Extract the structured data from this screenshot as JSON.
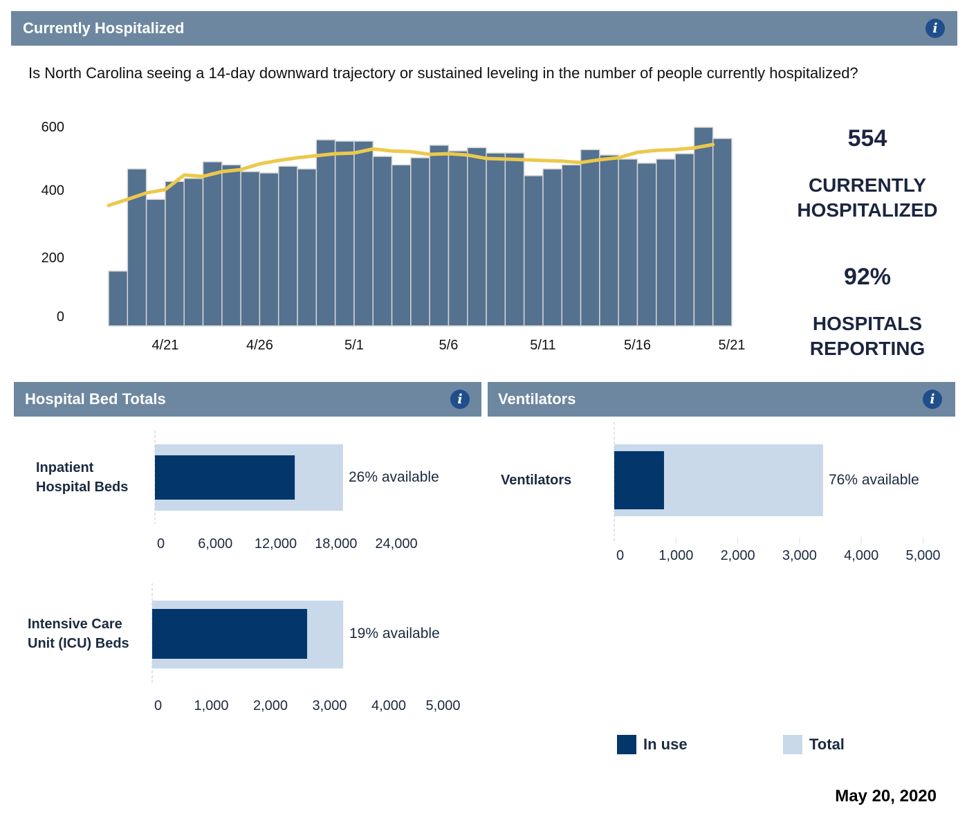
{
  "header": {
    "title": "Currently Hospitalized",
    "info_icon": "info-icon",
    "info_glyph": "i"
  },
  "question": "Is North Carolina seeing a 14-day downward trajectory or sustained leveling in the number of people currently hospitalized?",
  "kpis": {
    "hospitalized_value": "554",
    "hospitalized_label_1": "CURRENTLY",
    "hospitalized_label_2": "HOSPITALIZED",
    "reporting_value": "92%",
    "reporting_label_1": "HOSPITALS",
    "reporting_label_2": "REPORTING"
  },
  "beds_panel": {
    "title": "Hospital Bed Totals",
    "info_icon": "info-icon",
    "info_glyph": "i"
  },
  "vent_panel": {
    "title": "Ventilators",
    "info_icon": "info-icon",
    "info_glyph": "i"
  },
  "legend": {
    "in_use": "In use",
    "total": "Total"
  },
  "date": "May 20, 2020",
  "colors": {
    "header_bg": "#6d87a0",
    "info_icon": "#1f4e8b",
    "bar_fill": "#54718f",
    "bar_stroke": "#d5d5d5",
    "trend_line": "#ecc94b",
    "in_use": "#03366b",
    "total": "#c9d9ea",
    "text_dark": "#1b2a3f"
  },
  "chart_data": [
    {
      "type": "bar",
      "title": "Currently Hospitalized",
      "xlabel": "",
      "ylabel": "",
      "categories": [
        "4/18",
        "4/19",
        "4/20",
        "4/21",
        "4/22",
        "4/23",
        "4/24",
        "4/25",
        "4/26",
        "4/27",
        "4/28",
        "4/29",
        "4/30",
        "5/1",
        "5/2",
        "5/3",
        "5/4",
        "5/5",
        "5/6",
        "5/7",
        "5/8",
        "5/9",
        "5/10",
        "5/11",
        "5/12",
        "5/13",
        "5/14",
        "5/15",
        "5/16",
        "5/17",
        "5/18",
        "5/19",
        "5/20"
      ],
      "series": [
        {
          "name": "Currently hospitalized",
          "type": "bar",
          "values": [
            162,
            464,
            374,
            427,
            436,
            485,
            476,
            456,
            452,
            472,
            464,
            550,
            546,
            546,
            501,
            476,
            497,
            534,
            517,
            527,
            511,
            511,
            444,
            464,
            476,
            521,
            505,
            493,
            481,
            493,
            509,
            587,
            554
          ]
        },
        {
          "name": "Trend",
          "type": "line",
          "values": [
            356,
            374,
            393,
            403,
            446,
            442,
            456,
            462,
            479,
            489,
            497,
            503,
            509,
            511,
            523,
            517,
            515,
            507,
            509,
            505,
            495,
            493,
            491,
            489,
            487,
            483,
            491,
            497,
            513,
            519,
            521,
            526,
            536
          ]
        }
      ],
      "yticks": [
        0,
        200,
        400,
        600
      ],
      "ytick_labels": [
        "0",
        "200",
        "400",
        "600"
      ],
      "xtick_labels": [
        "4/21",
        "4/26",
        "5/1",
        "5/6",
        "5/11",
        "5/16",
        "5/21"
      ],
      "ylim": [
        0,
        600
      ],
      "grid": false,
      "legend": "none"
    },
    {
      "type": "bar",
      "title": "Inpatient Hospital Beds",
      "category_label_lines": [
        "Inpatient",
        "Hospital Beds"
      ],
      "series": [
        {
          "name": "Total",
          "values": [
            18700
          ]
        },
        {
          "name": "In use",
          "values": [
            13900
          ]
        }
      ],
      "annotation": "26% available",
      "xticks": [
        0,
        6000,
        12000,
        18000,
        24000
      ],
      "xtick_labels": [
        "0",
        "6,000",
        "12,000",
        "18,000",
        "24,000"
      ],
      "xlim": [
        0,
        24000
      ]
    },
    {
      "type": "bar",
      "title": "Intensive Care Unit (ICU) Beds",
      "category_label_lines": [
        "Intensive Care",
        "Unit (ICU) Beds"
      ],
      "series": [
        {
          "name": "Total",
          "values": [
            3230
          ]
        },
        {
          "name": "In use",
          "values": [
            2620
          ]
        }
      ],
      "annotation": "19% available",
      "xticks": [
        0,
        1000,
        2000,
        3000,
        4000,
        5000
      ],
      "xtick_labels": [
        "0",
        "1,000",
        "2,000",
        "3,000",
        "4,000",
        "5,000"
      ],
      "xlim": [
        0,
        5000
      ]
    },
    {
      "type": "bar",
      "title": "Ventilators",
      "category_label_lines": [
        "Ventilators"
      ],
      "series": [
        {
          "name": "Total",
          "values": [
            3380
          ]
        },
        {
          "name": "In use",
          "values": [
            806
          ]
        }
      ],
      "annotation": "76% available",
      "xticks": [
        0,
        1000,
        2000,
        3000,
        4000,
        5000
      ],
      "xtick_labels": [
        "0",
        "1,000",
        "2,000",
        "3,000",
        "4,000",
        "5,000"
      ],
      "xlim": [
        0,
        5000
      ],
      "legend": "bottom-right"
    }
  ]
}
